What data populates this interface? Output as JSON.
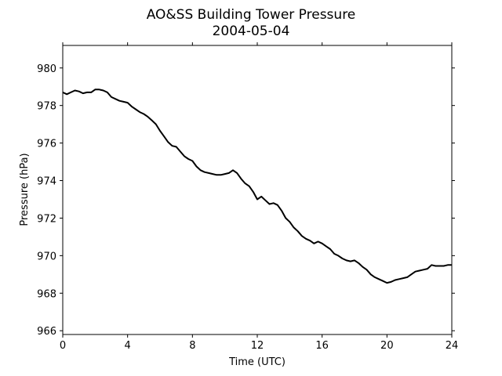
{
  "chart_data": {
    "type": "line",
    "title": "AO&SS Building Tower Pressure",
    "subtitle": "2004-05-04",
    "xlabel": "Time (UTC)",
    "ylabel": "Pressure (hPa)",
    "xlim": [
      0,
      24
    ],
    "ylim": [
      965.8,
      981.2
    ],
    "xticks": [
      0,
      4,
      8,
      12,
      16,
      20,
      24
    ],
    "yticks": [
      966,
      968,
      970,
      972,
      974,
      976,
      978,
      980
    ],
    "grid": false,
    "line_color": "#000000",
    "series": [
      {
        "x": [
          0,
          0.25,
          0.5,
          0.75,
          1.0,
          1.25,
          1.5,
          1.75,
          2.0,
          2.25,
          2.5,
          2.75,
          3.0,
          3.25,
          3.5,
          3.75,
          4.0,
          4.25,
          4.5,
          4.75,
          5.0,
          5.25,
          5.5,
          5.75,
          6.0,
          6.25,
          6.5,
          6.75,
          7.0,
          7.25,
          7.5,
          7.75,
          8.0,
          8.25,
          8.5,
          8.75,
          9.0,
          9.25,
          9.5,
          9.75,
          10.0,
          10.25,
          10.5,
          10.75,
          11.0,
          11.25,
          11.5,
          11.75,
          12.0,
          12.25,
          12.5,
          12.75,
          13.0,
          13.25,
          13.5,
          13.75,
          14.0,
          14.25,
          14.5,
          14.75,
          15.0,
          15.25,
          15.5,
          15.75,
          16.0,
          16.25,
          16.5,
          16.75,
          17.0,
          17.25,
          17.5,
          17.75,
          18.0,
          18.25,
          18.5,
          18.75,
          19.0,
          19.25,
          19.5,
          19.75,
          20.0,
          20.25,
          20.5,
          20.75,
          21.0,
          21.25,
          21.5,
          21.75,
          22.0,
          22.25,
          22.5,
          22.75,
          23.0,
          23.25,
          23.5,
          23.75,
          24.0
        ],
        "y": [
          978.7,
          978.6,
          978.7,
          978.8,
          978.75,
          978.65,
          978.7,
          978.7,
          978.85,
          978.85,
          978.8,
          978.7,
          978.45,
          978.35,
          978.25,
          978.2,
          978.15,
          977.95,
          977.8,
          977.65,
          977.55,
          977.4,
          977.2,
          977.0,
          976.65,
          976.35,
          976.05,
          975.85,
          975.8,
          975.55,
          975.3,
          975.15,
          975.05,
          974.75,
          974.55,
          974.45,
          974.4,
          974.35,
          974.3,
          974.3,
          974.35,
          974.4,
          974.55,
          974.4,
          974.1,
          973.85,
          973.7,
          973.4,
          973.0,
          973.15,
          972.95,
          972.75,
          972.8,
          972.7,
          972.4,
          972.0,
          971.8,
          971.5,
          971.3,
          971.05,
          970.9,
          970.8,
          970.65,
          970.75,
          970.65,
          970.5,
          970.35,
          970.1,
          970.0,
          969.85,
          969.75,
          969.7,
          969.75,
          969.6,
          969.4,
          969.25,
          969.0,
          968.85,
          968.75,
          968.65,
          968.55,
          968.6,
          968.7,
          968.75,
          968.8,
          968.85,
          969.0,
          969.15,
          969.2,
          969.25,
          969.3,
          969.5,
          969.45,
          969.45,
          969.45,
          969.5,
          969.5
        ]
      }
    ]
  }
}
